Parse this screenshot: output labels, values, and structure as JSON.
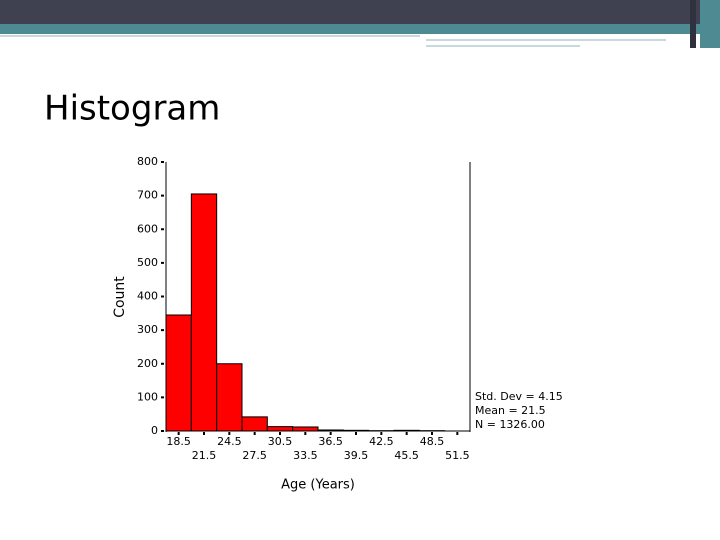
{
  "slide_title": "Histogram",
  "chart_data": {
    "type": "histogram",
    "y_label": "Count",
    "x_label": "Age (Years)",
    "bins": [
      17,
      20,
      23,
      26,
      29,
      32,
      35,
      38,
      41,
      44,
      47,
      50,
      53
    ],
    "values": [
      345,
      705,
      200,
      42,
      13,
      12,
      3,
      2,
      1,
      2,
      1,
      0
    ],
    "color": "#ff0000",
    "xlim": [
      17,
      53
    ],
    "xticks": [
      18.5,
      21.5,
      24.5,
      27.5,
      30.5,
      33.5,
      36.5,
      39.5,
      42.5,
      45.5,
      48.5,
      51.5
    ],
    "ylim": [
      0,
      800
    ],
    "yticks": [
      0,
      100,
      200,
      300,
      400,
      500,
      600,
      700,
      800
    ],
    "stats": [
      "Std. Dev = 4.15",
      "Mean = 21.5",
      "N = 1326.00"
    ]
  }
}
